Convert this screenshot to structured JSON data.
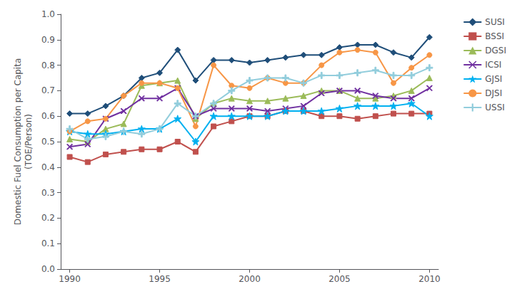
{
  "chart_data": {
    "type": "line",
    "x": [
      1990,
      1991,
      1992,
      1993,
      1994,
      1995,
      1996,
      1997,
      1998,
      1999,
      2000,
      2001,
      2002,
      2003,
      2004,
      2005,
      2006,
      2007,
      2008,
      2009,
      2010
    ],
    "series": [
      {
        "name": "SUSI",
        "color": "#1F4E79",
        "marker": "diamond",
        "values": [
          0.61,
          0.61,
          0.64,
          0.68,
          0.75,
          0.77,
          0.86,
          0.74,
          0.82,
          0.82,
          0.81,
          0.82,
          0.83,
          0.84,
          0.84,
          0.87,
          0.88,
          0.88,
          0.85,
          0.83,
          0.91
        ]
      },
      {
        "name": "BSSI",
        "color": "#C0504D",
        "marker": "square",
        "values": [
          0.44,
          0.42,
          0.45,
          0.46,
          0.47,
          0.47,
          0.5,
          0.46,
          0.56,
          0.58,
          0.6,
          0.6,
          0.62,
          0.62,
          0.6,
          0.6,
          0.59,
          0.6,
          0.61,
          0.61,
          0.61
        ]
      },
      {
        "name": "DGSI",
        "color": "#9BBB59",
        "marker": "triangle",
        "values": [
          0.51,
          0.5,
          0.55,
          0.57,
          0.72,
          0.73,
          0.74,
          0.59,
          0.65,
          0.67,
          0.66,
          0.66,
          0.67,
          0.68,
          0.7,
          0.7,
          0.67,
          0.67,
          0.68,
          0.7,
          0.75
        ]
      },
      {
        "name": "ICSI",
        "color": "#7030A0",
        "marker": "x",
        "values": [
          0.48,
          0.49,
          0.59,
          0.62,
          0.67,
          0.67,
          0.71,
          0.6,
          0.63,
          0.63,
          0.63,
          0.62,
          0.63,
          0.64,
          0.69,
          0.7,
          0.7,
          0.68,
          0.67,
          0.67,
          0.71
        ]
      },
      {
        "name": "GJSI",
        "color": "#00B0F0",
        "marker": "star",
        "values": [
          0.54,
          0.53,
          0.53,
          0.54,
          0.55,
          0.55,
          0.59,
          0.5,
          0.6,
          0.6,
          0.6,
          0.6,
          0.62,
          0.62,
          0.62,
          0.63,
          0.64,
          0.64,
          0.64,
          0.65,
          0.6
        ]
      },
      {
        "name": "DJSI",
        "color": "#F79646",
        "marker": "circle",
        "values": [
          0.54,
          0.58,
          0.59,
          0.68,
          0.73,
          0.73,
          0.71,
          0.56,
          0.8,
          0.72,
          0.71,
          0.75,
          0.73,
          0.73,
          0.8,
          0.85,
          0.86,
          0.85,
          0.73,
          0.79,
          0.84
        ]
      },
      {
        "name": "USSI",
        "color": "#92CDDC",
        "marker": "plus",
        "values": [
          0.55,
          0.51,
          0.52,
          0.54,
          0.53,
          0.55,
          0.65,
          0.6,
          0.65,
          0.7,
          0.74,
          0.75,
          0.75,
          0.73,
          0.76,
          0.76,
          0.77,
          0.78,
          0.76,
          0.76,
          0.79
        ]
      }
    ],
    "ylabel": "Domestic Fuel Consumption per Capita\n(TOE/Person)",
    "xlim": [
      1989.5,
      2010.5
    ],
    "xticks": [
      1990,
      1995,
      2000,
      2005,
      2010
    ],
    "ylim": [
      0.0,
      1.0
    ],
    "yticks": [
      {
        "value": 0.0,
        "label": "0.0"
      },
      0.1,
      0.2,
      0.3,
      0.4,
      0.5,
      0.6,
      0.7,
      0.8,
      0.9,
      {
        "value": 1.0,
        "label": "1.0"
      }
    ],
    "grid": false,
    "legend": "right"
  }
}
